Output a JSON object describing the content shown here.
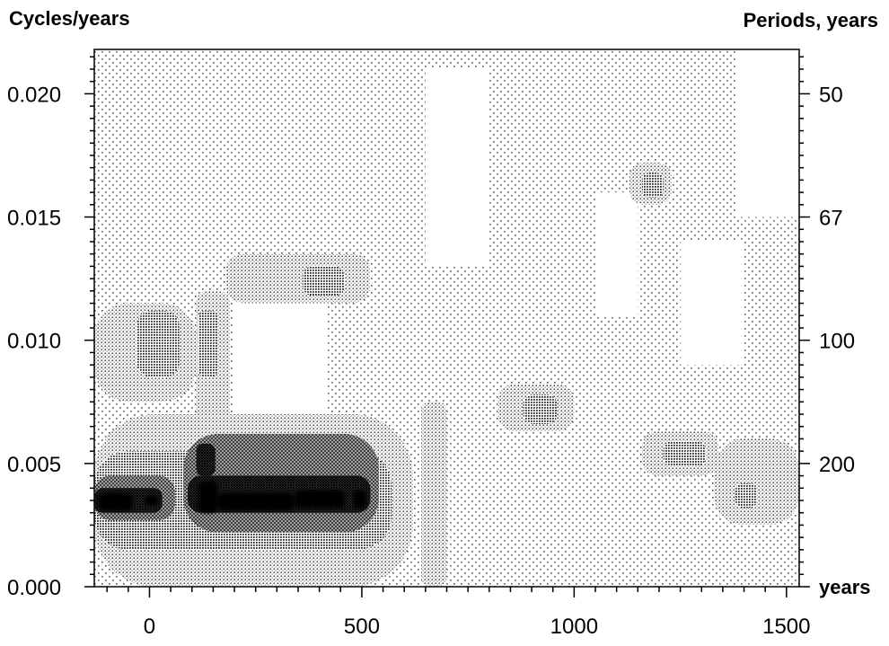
{
  "chart_data": {
    "type": "heatmap",
    "title": "",
    "left_axis_label": "Cycles/years",
    "right_axis_label": "Periods, years",
    "x_unit_label": "years",
    "xlim": [
      -130,
      1530
    ],
    "ylim": [
      0,
      0.0218
    ],
    "x_ticks": [
      0,
      500,
      1000,
      1500
    ],
    "x_tick_labels": [
      "0",
      "500",
      "1000",
      "1500"
    ],
    "y_ticks": [
      0.0,
      0.005,
      0.01,
      0.015,
      0.02
    ],
    "y_tick_labels": [
      "0.000",
      "0.005",
      "0.010",
      "0.015",
      "0.020"
    ],
    "right_ticks": [
      {
        "frequency": 0.02,
        "label": "50"
      },
      {
        "frequency": 0.015,
        "label": "67"
      },
      {
        "frequency": 0.01,
        "label": "100"
      },
      {
        "frequency": 0.005,
        "label": "200"
      }
    ],
    "levels": [
      "white",
      "light-dots",
      "medium-dots",
      "dense-dots",
      "cross-hatch",
      "dark-hatch",
      "solid-black"
    ],
    "colors": {
      "background": "#ffffff",
      "ink": "#000000"
    },
    "grid": false,
    "regions": [
      {
        "x": [
          -130,
          1530
        ],
        "y": [
          0.0,
          0.0218
        ],
        "level": 1
      },
      {
        "x": [
          200,
          420
        ],
        "y": [
          0.006,
          0.0125
        ],
        "level": 0
      },
      {
        "x": [
          650,
          800
        ],
        "y": [
          0.013,
          0.021
        ],
        "level": 0
      },
      {
        "x": [
          1050,
          1150
        ],
        "y": [
          0.011,
          0.016
        ],
        "level": 0
      },
      {
        "x": [
          1250,
          1400
        ],
        "y": [
          0.009,
          0.014
        ],
        "level": 0
      },
      {
        "x": [
          1380,
          1530
        ],
        "y": [
          0.015,
          0.0218
        ],
        "level": 0
      },
      {
        "x": [
          -130,
          620
        ],
        "y": [
          0.0,
          0.007
        ],
        "level": 2
      },
      {
        "x": [
          -130,
          110
        ],
        "y": [
          0.0075,
          0.0115
        ],
        "level": 2
      },
      {
        "x": [
          110,
          190
        ],
        "y": [
          0.0065,
          0.012
        ],
        "level": 2
      },
      {
        "x": [
          180,
          520
        ],
        "y": [
          0.0115,
          0.0135
        ],
        "level": 2
      },
      {
        "x": [
          640,
          700
        ],
        "y": [
          0.0,
          0.0075
        ],
        "level": 2
      },
      {
        "x": [
          820,
          1000
        ],
        "y": [
          0.0063,
          0.0082
        ],
        "level": 2
      },
      {
        "x": [
          1130,
          1230
        ],
        "y": [
          0.0155,
          0.0172
        ],
        "level": 2
      },
      {
        "x": [
          1160,
          1340
        ],
        "y": [
          0.0045,
          0.0063
        ],
        "level": 2
      },
      {
        "x": [
          1330,
          1530
        ],
        "y": [
          0.0025,
          0.006
        ],
        "level": 2
      },
      {
        "x": [
          -130,
          570
        ],
        "y": [
          0.0015,
          0.0055
        ],
        "level": 3
      },
      {
        "x": [
          -30,
          70
        ],
        "y": [
          0.0085,
          0.0112
        ],
        "level": 3
      },
      {
        "x": [
          115,
          160
        ],
        "y": [
          0.0085,
          0.0112
        ],
        "level": 3
      },
      {
        "x": [
          360,
          460
        ],
        "y": [
          0.0118,
          0.013
        ],
        "level": 3
      },
      {
        "x": [
          880,
          960
        ],
        "y": [
          0.0066,
          0.0078
        ],
        "level": 3
      },
      {
        "x": [
          1160,
          1210
        ],
        "y": [
          0.0158,
          0.0168
        ],
        "level": 3
      },
      {
        "x": [
          1210,
          1310
        ],
        "y": [
          0.0049,
          0.0059
        ],
        "level": 3
      },
      {
        "x": [
          1380,
          1430
        ],
        "y": [
          0.0032,
          0.0042
        ],
        "level": 3
      },
      {
        "x": [
          -130,
          60
        ],
        "y": [
          0.0027,
          0.0045
        ],
        "level": 4
      },
      {
        "x": [
          80,
          540
        ],
        "y": [
          0.0022,
          0.0062
        ],
        "level": 4
      },
      {
        "x": [
          -130,
          30
        ],
        "y": [
          0.003,
          0.004
        ],
        "level": 5
      },
      {
        "x": [
          90,
          520
        ],
        "y": [
          0.003,
          0.0045
        ],
        "level": 5
      },
      {
        "x": [
          110,
          155
        ],
        "y": [
          0.0045,
          0.0058
        ],
        "level": 5
      },
      {
        "x": [
          -120,
          -40
        ],
        "y": [
          0.0031,
          0.0038
        ],
        "level": 6
      },
      {
        "x": [
          -10,
          20
        ],
        "y": [
          0.0033,
          0.0037
        ],
        "level": 6
      },
      {
        "x": [
          115,
          160
        ],
        "y": [
          0.003,
          0.0043
        ],
        "level": 6
      },
      {
        "x": [
          160,
          340
        ],
        "y": [
          0.0031,
          0.0038
        ],
        "level": 6
      },
      {
        "x": [
          340,
          460
        ],
        "y": [
          0.0032,
          0.0039
        ],
        "level": 6
      },
      {
        "x": [
          480,
          510
        ],
        "y": [
          0.0032,
          0.0039
        ],
        "level": 6
      }
    ]
  }
}
